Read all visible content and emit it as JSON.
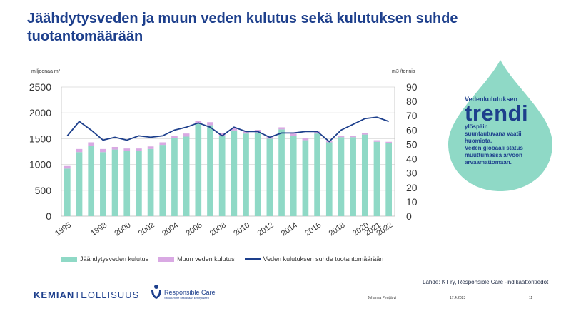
{
  "slide": {
    "title": "Jäähdytysveden ja muun veden kulutus sekä kulutuksen suhde tuotantomäärään"
  },
  "chart_data": {
    "type": "bar",
    "subtype": "stacked-bar-with-line-secondary-axis",
    "years": [
      1995,
      1996,
      1997,
      1998,
      1999,
      2000,
      2001,
      2002,
      2003,
      2004,
      2005,
      2006,
      2007,
      2008,
      2009,
      2010,
      2011,
      2012,
      2013,
      2014,
      2015,
      2016,
      2017,
      2018,
      2019,
      2020,
      2021,
      2022
    ],
    "x_tick_labels": [
      "1995",
      "1998",
      "2000",
      "2002",
      "2004",
      "2006",
      "2008",
      "2010",
      "2012",
      "2014",
      "2016",
      "2018",
      "2020",
      "2021",
      "2022"
    ],
    "x_tick_years": [
      1995,
      1998,
      2000,
      2002,
      2004,
      2006,
      2008,
      2010,
      2012,
      2014,
      2016,
      2018,
      2020,
      2021,
      2022
    ],
    "left_axis": {
      "label": "miljoonaa m³",
      "min": 0,
      "max": 2500,
      "ticks": [
        0,
        500,
        1000,
        1500,
        2000,
        2500
      ]
    },
    "right_axis": {
      "label": "m3 /tonnia",
      "min": 0,
      "max": 90,
      "ticks": [
        0,
        10,
        20,
        30,
        40,
        50,
        60,
        70,
        80,
        90
      ]
    },
    "grid": "horizontal",
    "legend_position": "bottom",
    "series": [
      {
        "name": "Jäähdytysveden kulutus",
        "type": "bar",
        "axis": "left",
        "color": "#8fd9c6",
        "values": [
          920,
          1240,
          1360,
          1240,
          1290,
          1260,
          1260,
          1300,
          1380,
          1510,
          1540,
          1800,
          1760,
          1560,
          1660,
          1600,
          1620,
          1500,
          1680,
          1560,
          1470,
          1600,
          1430,
          1530,
          1530,
          1580,
          1440,
          1410
        ]
      },
      {
        "name": "Muun veden kulutus",
        "type": "bar",
        "axis": "left",
        "color": "#d9a9e3",
        "values": [
          50,
          60,
          70,
          60,
          50,
          50,
          50,
          50,
          50,
          50,
          60,
          50,
          60,
          50,
          40,
          40,
          50,
          40,
          40,
          40,
          40,
          40,
          30,
          30,
          30,
          30,
          30,
          30
        ]
      },
      {
        "name": "Veden kulutuksen suhde tuotantomäärään",
        "type": "line",
        "axis": "right",
        "color": "#1d3f8c",
        "values": [
          56,
          66,
          60,
          53,
          55,
          53,
          56,
          55,
          56,
          60,
          62,
          65,
          62,
          56,
          62,
          59,
          59,
          55,
          58,
          58,
          59,
          59,
          52,
          60,
          64,
          68,
          69,
          66
        ]
      }
    ]
  },
  "callout": {
    "line1": "Vedenkulutuksen",
    "big": "trendi",
    "lines": [
      "ylöspäin",
      "suuntautuvana vaatii",
      "huomiota.",
      "Veden globaali status",
      "muuttumassa arvoon",
      "arvaamattomaan."
    ],
    "color": "#8fd9c6"
  },
  "source": "Lähde: KT ry, Responsible Care -indikaattoritiedot",
  "footer": {
    "logo_bold": "KEMIAN",
    "logo_light": "TEOLLISUUS",
    "rc_title": "Responsible Care",
    "rc_sub": "Sitoutumme kestävään kehitykseen",
    "author": "Johanna Pentjärvi",
    "date": "17.4.2023",
    "page": "11"
  }
}
